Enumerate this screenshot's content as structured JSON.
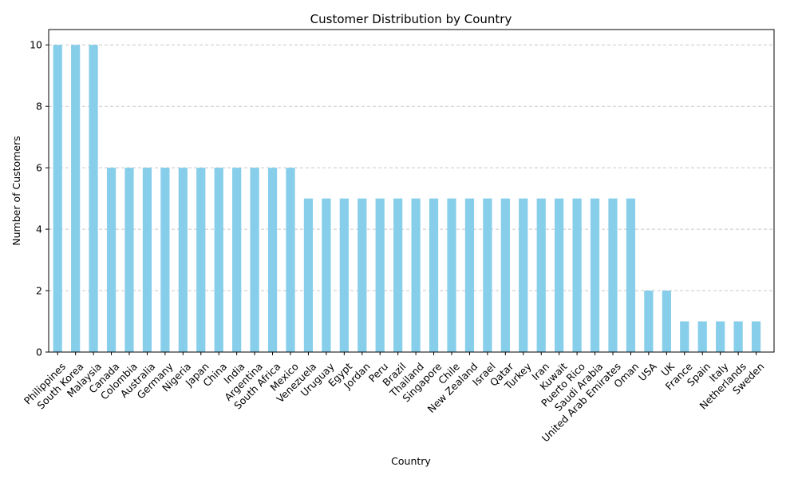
{
  "chart_data": {
    "type": "bar",
    "title": "Customer Distribution by Country",
    "xlabel": "Country",
    "ylabel": "Number of Customers",
    "ylim": [
      0,
      10.5
    ],
    "yticks": [
      0,
      2,
      4,
      6,
      8,
      10
    ],
    "grid": "y-dashed",
    "bar_color": "#87ceeb",
    "categories": [
      "Philippines",
      "South Korea",
      "Malaysia",
      "Canada",
      "Colombia",
      "Australia",
      "Germany",
      "Nigeria",
      "Japan",
      "China",
      "India",
      "Argentina",
      "South Africa",
      "Mexico",
      "Venezuela",
      "Uruguay",
      "Egypt",
      "Jordan",
      "Peru",
      "Brazil",
      "Thailand",
      "Singapore",
      "Chile",
      "New Zealand",
      "Israel",
      "Qatar",
      "Turkey",
      "Iran",
      "Kuwait",
      "Puerto Rico",
      "Saudi Arabia",
      "United Arab Emirates",
      "Oman",
      "USA",
      "UK",
      "France",
      "Spain",
      "Italy",
      "Netherlands",
      "Sweden"
    ],
    "values": [
      10,
      10,
      10,
      6,
      6,
      6,
      6,
      6,
      6,
      6,
      6,
      6,
      6,
      6,
      5,
      5,
      5,
      5,
      5,
      5,
      5,
      5,
      5,
      5,
      5,
      5,
      5,
      5,
      5,
      5,
      5,
      5,
      5,
      2,
      2,
      1,
      1,
      1,
      1,
      1
    ]
  }
}
